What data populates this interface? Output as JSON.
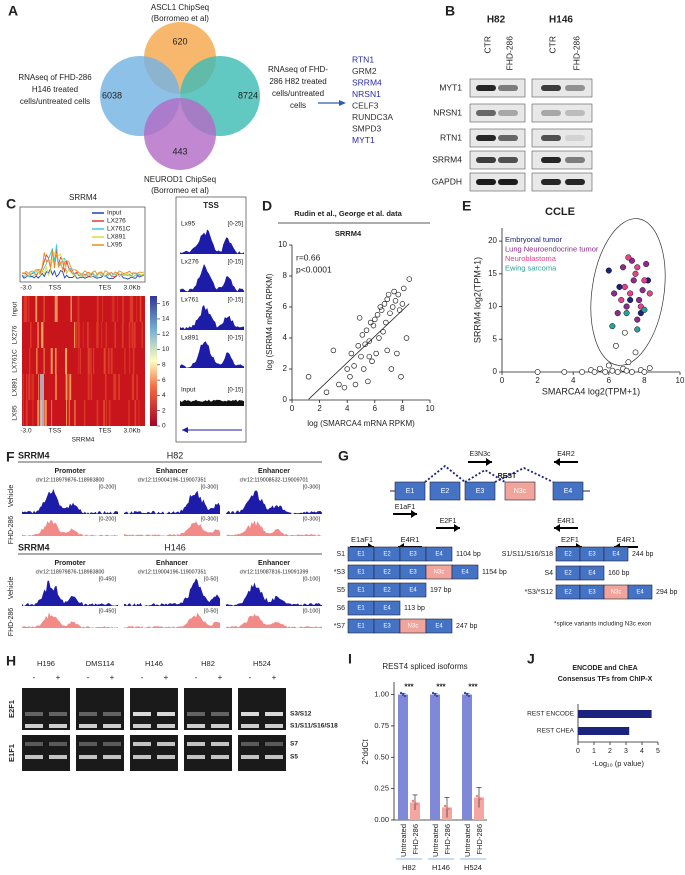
{
  "panel_letters": [
    "A",
    "B",
    "C",
    "D",
    "E",
    "F",
    "G",
    "H",
    "I",
    "J"
  ],
  "venn": {
    "sets": [
      {
        "label": [
          "ASCL1 ChipSeq",
          "(Borromeo et al)"
        ],
        "count": 620,
        "color": "#f5a84e"
      },
      {
        "label": [
          "RNAseq of FHD-286",
          "H146 treated",
          "cells/untreated cells"
        ],
        "count": 6038,
        "color": "#74b3e3"
      },
      {
        "label": [
          "RNAseq of FHD-",
          "286 H82 treated",
          "cells/untreated",
          "cells"
        ],
        "count": 8724,
        "color": "#3fbcb4"
      },
      {
        "label": [
          "NEUROD1 ChipSeq",
          "(Borromeo et al)"
        ],
        "count": 443,
        "color": "#b36cc6"
      }
    ],
    "genes": [
      {
        "name": "RTN1",
        "color": "#2b2ba8"
      },
      {
        "name": "GRM2",
        "color": "#333333"
      },
      {
        "name": "SRRM4",
        "color": "#2b2ba8"
      },
      {
        "name": "NRSN1",
        "color": "#2b2ba8"
      },
      {
        "name": "CELF3",
        "color": "#333333"
      },
      {
        "name": "RUNDC3A",
        "color": "#333333"
      },
      {
        "name": "SMPD3",
        "color": "#333333"
      },
      {
        "name": "MYT1",
        "color": "#2b2ba8"
      }
    ]
  },
  "western": {
    "cell_lines": [
      "H82",
      "H146"
    ],
    "conditions": [
      "CTR",
      "FHD-286"
    ],
    "proteins": [
      "MYT1",
      "NRSN1",
      "RTN1",
      "SRRM4",
      "GAPDH"
    ]
  },
  "srrm4_profile": {
    "title": "SRRM4",
    "samples": [
      {
        "name": "Input",
        "color": "#1f3fbf"
      },
      {
        "name": "LX276",
        "color": "#e03a3a"
      },
      {
        "name": "LX761C",
        "color": "#3fc9e0"
      },
      {
        "name": "LX891",
        "color": "#d6de3c"
      },
      {
        "name": "LX95",
        "color": "#f08a1e"
      }
    ],
    "x_labels": [
      "-3.0",
      "TSS",
      "TES",
      "3.0Kb"
    ],
    "heatmap_rows": [
      "Input",
      "LX276",
      "LX761C",
      "LX891",
      "LX95"
    ],
    "heatmap_xlabel": "SRRM4",
    "colorbar_lim": [
      0,
      17
    ],
    "colorbar_ticks": [
      0,
      2,
      4,
      6,
      8,
      10,
      12,
      14,
      16
    ]
  },
  "tss_tracks": {
    "title": "TSS",
    "tracks": [
      {
        "name": "Lx95",
        "range": "[0-25]"
      },
      {
        "name": "Lx276",
        "range": "[0-15]"
      },
      {
        "name": "Lx761",
        "range": "[0-15]"
      },
      {
        "name": "Lx891",
        "range": "[0-15]"
      },
      {
        "name": "Input",
        "range": "[0-15]"
      }
    ]
  },
  "chip_tracks": {
    "gene": "SRRM4",
    "conditions": [
      "Vehicle",
      "FHD-286"
    ],
    "cell_lines": [
      {
        "name": "H82",
        "regions": [
          {
            "type": "Promoter",
            "coords": "chr12:118979876-118983800",
            "ranges": [
              "[0-200]",
              "[0-200]"
            ]
          },
          {
            "type": "Enhancer",
            "coords": "chr12:119004196-119007351",
            "ranges": [
              "[0-300]",
              "[0-300]"
            ]
          },
          {
            "type": "Enhancer",
            "coords": "chr12:119008532-119009701",
            "ranges": [
              "[0-300]",
              "[0-300]"
            ]
          }
        ]
      },
      {
        "name": "H146",
        "regions": [
          {
            "type": "Promoter",
            "coords": "chr12:118979876-118983800",
            "ranges": [
              "[0-450]",
              "[0-450]"
            ]
          },
          {
            "type": "Enhancer",
            "coords": "chr12:119004196-119007351",
            "ranges": [
              "[0-50]",
              "[0-50]"
            ]
          },
          {
            "type": "Enhancer",
            "coords": "chr12:119087816-119091399",
            "ranges": [
              "[0-100]",
              "[0-100]"
            ]
          }
        ]
      }
    ]
  },
  "rest_splicing": {
    "gene": "REST",
    "exons": [
      "E1",
      "E2",
      "E3",
      "N3c",
      "E4"
    ],
    "top_primers": [
      "E3N3c",
      "E4R2",
      "E1aF1",
      "E2F1",
      "E4R1"
    ],
    "left": {
      "primers": [
        "E1aF1",
        "E4R1"
      ],
      "variants": [
        {
          "name": "S1",
          "exons": [
            "E1",
            "E2",
            "E3",
            "E4"
          ],
          "size": "1104 bp"
        },
        {
          "name": "*S3",
          "exons": [
            "E1",
            "E2",
            "E3",
            "N3c",
            "E4"
          ],
          "size": "1154 bp"
        },
        {
          "name": "S5",
          "exons": [
            "E1",
            "E2",
            "E4"
          ],
          "size": "197 bp"
        },
        {
          "name": "S6",
          "exons": [
            "E1",
            "E4"
          ],
          "size": "113 bp"
        },
        {
          "name": "*S7",
          "exons": [
            "E1",
            "E3",
            "N3c",
            "E4"
          ],
          "size": "247 bp"
        }
      ]
    },
    "right": {
      "primers": [
        "E2F1",
        "E4R1"
      ],
      "variants": [
        {
          "name": "S1/S11/S16/S18",
          "exons": [
            "E2",
            "E3",
            "E4"
          ],
          "size": "244 bp"
        },
        {
          "name": "S4",
          "exons": [
            "E2",
            "E4"
          ],
          "size": "160 bp"
        },
        {
          "name": "*S3/*S12",
          "exons": [
            "E2",
            "E3",
            "N3c",
            "E4"
          ],
          "size": "294 bp"
        }
      ]
    },
    "footnote": "*splice variants including N3c exon"
  },
  "gel": {
    "cell_lines": [
      "H196",
      "DMS114",
      "H146",
      "H82",
      "H524"
    ],
    "treatment": [
      "-",
      "+"
    ],
    "primers": [
      "E2F1",
      "E1F1"
    ],
    "bands": [
      "S3/S12",
      "S1/S11/S16/S18",
      "S7",
      "S5"
    ]
  },
  "chart_data": [
    {
      "type": "scatter",
      "title": "Rudin et al., George et al. data",
      "subtitle": "SRRM4",
      "annotations": [
        "r=0.66",
        "p<0.0001"
      ],
      "xlabel": "log (SMARCA4 mRNA RPKM)",
      "ylabel": "log (SRRM4 mRNA RPKM)",
      "x": [
        1.2,
        2.5,
        3.0,
        3.4,
        3.8,
        4.0,
        4.2,
        4.3,
        4.5,
        4.6,
        4.8,
        5.0,
        5.1,
        5.2,
        5.3,
        5.4,
        5.5,
        5.6,
        5.7,
        5.8,
        5.9,
        6.0,
        6.1,
        6.2,
        6.3,
        6.4,
        6.5,
        6.6,
        6.7,
        6.8,
        6.9,
        7.0,
        7.1,
        7.2,
        7.3,
        7.4,
        7.5,
        7.6,
        7.7,
        7.8,
        8.0,
        8.1,
        8.3,
        8.5,
        7.9,
        6.9,
        5.6,
        4.9
      ],
      "y": [
        1.5,
        0.5,
        3.2,
        1.0,
        0.8,
        2.0,
        1.5,
        3.0,
        2.2,
        1.0,
        3.5,
        2.8,
        4.2,
        2.0,
        3.6,
        4.5,
        1.2,
        3.8,
        5.0,
        2.5,
        4.8,
        5.2,
        3.0,
        5.5,
        4.0,
        6.0,
        5.8,
        4.4,
        6.2,
        5.0,
        6.5,
        6.8,
        5.6,
        2.0,
        6.0,
        7.0,
        6.4,
        3.0,
        6.8,
        5.8,
        6.2,
        7.2,
        4.0,
        7.8,
        1.5,
        3.2,
        2.8,
        5.3
      ],
      "xlim": [
        0,
        10
      ],
      "ylim": [
        0,
        10
      ],
      "xticks": [
        0,
        2,
        4,
        6,
        8,
        10
      ],
      "yticks": [
        0,
        2,
        4,
        6,
        8,
        10
      ]
    },
    {
      "type": "scatter",
      "title": "CCLE",
      "xlabel": "SMARCA4 log2(TPM+1)",
      "ylabel": "SRRM4 log2(TPM+1)",
      "series": [
        {
          "name": "Embryonal tumor",
          "color": "#1a237e",
          "x": [
            6.0,
            7.2,
            7.8,
            6.6,
            8.2
          ],
          "y": [
            15.5,
            11,
            9,
            13,
            14
          ]
        },
        {
          "name": "Lung Neuroendocrine tumor",
          "color": "#8e2a8e",
          "x": [
            6.3,
            6.8,
            7.0,
            7.4,
            7.6,
            7.9,
            8.1,
            6.5,
            7.3,
            7.7
          ],
          "y": [
            12,
            16,
            10,
            14,
            8,
            12.5,
            16.5,
            9,
            17,
            11
          ]
        },
        {
          "name": "Neuroblastoma",
          "color": "#e8418c",
          "x": [
            6.9,
            7.1,
            7.5,
            7.8,
            8.0,
            7.2,
            6.7,
            8.3,
            7.6
          ],
          "y": [
            13,
            17.5,
            15,
            10,
            14,
            12,
            11,
            12,
            16
          ]
        },
        {
          "name": "Ewing sarcoma",
          "color": "#2aa198",
          "x": [
            6.2,
            7.0,
            7.6,
            8.0
          ],
          "y": [
            7,
            9,
            6.5,
            9.5
          ]
        }
      ],
      "background_points": {
        "color": "#ffffff",
        "x": [
          2.0,
          3.5,
          4.5,
          5.0,
          5.5,
          5.8,
          6.0,
          6.2,
          6.5,
          6.8,
          7.0,
          7.3,
          7.5,
          7.8,
          8.0,
          8.3,
          6.4,
          7.1,
          5.2,
          6.9
        ],
        "y": [
          0,
          0,
          0,
          0.3,
          0.5,
          0,
          1,
          0.2,
          0,
          0.5,
          0.2,
          0,
          3,
          0.3,
          0,
          0.6,
          4,
          1.5,
          0,
          6
        ]
      },
      "xlim": [
        0,
        10
      ],
      "ylim": [
        0,
        22
      ],
      "xticks": [
        0,
        2,
        4,
        6,
        8,
        10
      ],
      "yticks": [
        0,
        5,
        10,
        15,
        20
      ]
    },
    {
      "type": "bar",
      "title": "REST4 spliced isoforms",
      "ylabel": "2^ddCt",
      "categories": [
        "H82",
        "H146",
        "H524"
      ],
      "series": [
        {
          "name": "Untreated",
          "color": "#7f89d8",
          "values": [
            1.0,
            1.0,
            1.0
          ],
          "errors": [
            0.01,
            0.01,
            0.01
          ]
        },
        {
          "name": "FHD-286",
          "color": "#f4a6a0",
          "values": [
            0.14,
            0.1,
            0.18
          ],
          "errors": [
            0.06,
            0.08,
            0.08
          ]
        }
      ],
      "annotations": [
        "***",
        "***",
        "***"
      ],
      "ylim": [
        0,
        1.1
      ],
      "yticks": [
        {
          "value": 0,
          "label": "0.00"
        },
        {
          "value": 0.25,
          "label": "0.25"
        },
        {
          "value": 0.5,
          "label": "0.50"
        },
        {
          "value": 0.75,
          "label": "0.75"
        },
        {
          "value": 1,
          "label": "1.00"
        }
      ]
    },
    {
      "type": "barh",
      "title": [
        "ENCODE and ChEA",
        "Consensus TFs from ChIP-X"
      ],
      "categories": [
        "REST ENCODE",
        "REST CHEA"
      ],
      "values": [
        4.6,
        3.2
      ],
      "color": "#1a237e",
      "xlabel": "-Log₁₀ (p value)",
      "xlim": [
        0,
        5
      ],
      "xticks": [
        0,
        1,
        2,
        3,
        4,
        5
      ]
    }
  ]
}
